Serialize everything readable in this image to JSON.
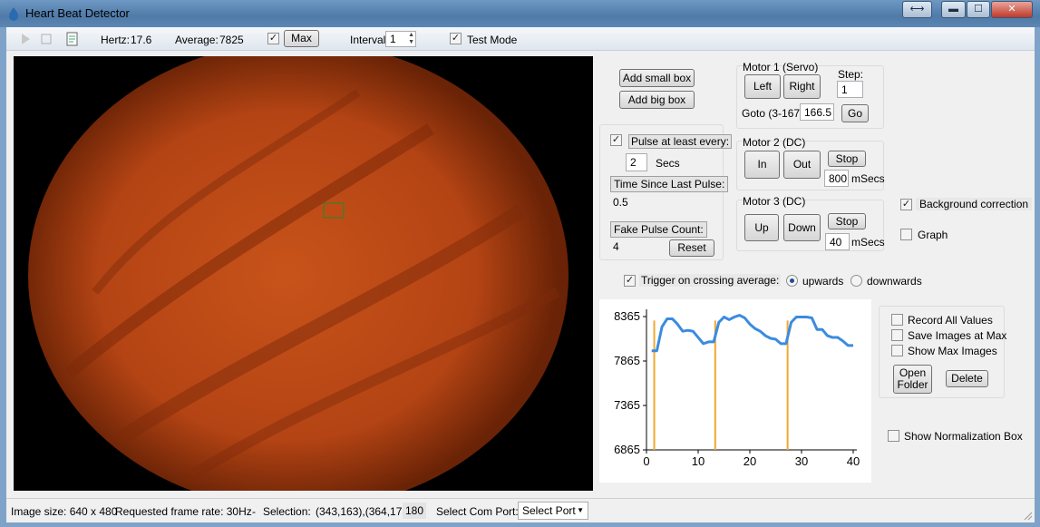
{
  "window": {
    "title": "Heart Beat Detector"
  },
  "toolbar": {
    "hertz_label": "Hertz:",
    "hertz_value": "17.6",
    "average_label": "Average:",
    "average_value": "7825",
    "max_checked": true,
    "max_label": "Max",
    "interval_label": "Interval:",
    "interval_value": "1",
    "test_mode_checked": true,
    "test_mode_label": "Test Mode"
  },
  "controls": {
    "add_small_box": "Add small box",
    "add_big_box": "Add big box",
    "pulse_checked": true,
    "pulse_label": "Pulse at least every:",
    "pulse_secs_value": "2",
    "secs_label": "Secs",
    "time_since_label": "Time Since Last Pulse:",
    "time_since_value": "0.5",
    "fake_pulse_label": "Fake Pulse Count:",
    "fake_pulse_value": "4",
    "reset_label": "Reset"
  },
  "motor1": {
    "title": "Motor 1  (Servo)",
    "left": "Left",
    "right": "Right",
    "step_label": "Step:",
    "step_value": "1",
    "goto_label": "Goto (3-167):",
    "goto_value": "166.5",
    "go": "Go"
  },
  "motor2": {
    "title": "Motor 2  (DC)",
    "in": "In",
    "out": "Out",
    "stop": "Stop",
    "msecs_value": "800",
    "msecs_label": "mSecs"
  },
  "motor3": {
    "title": "Motor 3 (DC)",
    "up": "Up",
    "down": "Down",
    "stop": "Stop",
    "msecs_value": "40",
    "msecs_label": "mSecs"
  },
  "options": {
    "background_correction_checked": true,
    "background_correction": "Background correction",
    "graph_checked": false,
    "graph": "Graph",
    "trigger_checked": true,
    "trigger_label": "Trigger on crossing average:",
    "upwards": "upwards",
    "downwards": "downwards",
    "direction_selected": "upwards",
    "record_all": "Record All Values",
    "save_images": "Save Images at Max",
    "show_max": "Show Max Images",
    "open_folder_line1": "Open",
    "open_folder_line2": "Folder",
    "delete": "Delete",
    "show_norm_box": "Show Normalization Box"
  },
  "status": {
    "image_size": "Image size: 640 x 480",
    "frame_rate": "Requested frame rate: 30Hz",
    "separator": "-",
    "selection_label": "Selection:",
    "selection_value": "(343,163),(364,178)",
    "selection_count": "180",
    "com_label": "Select Com Port:",
    "com_value": "Select Port"
  },
  "chart_data": {
    "type": "line",
    "title": "",
    "xlabel": "",
    "ylabel": "",
    "xlim": [
      0,
      40
    ],
    "ylim": [
      6865,
      8365
    ],
    "x_ticks": [
      0,
      10,
      20,
      30,
      40
    ],
    "y_ticks": [
      6865,
      7365,
      7865,
      8365
    ],
    "series": [
      {
        "x": [
          1,
          2,
          3,
          4,
          5,
          6,
          7,
          8,
          9,
          10,
          11,
          12,
          13,
          14,
          15,
          16,
          17,
          18,
          19,
          20,
          21,
          22,
          23,
          24,
          25,
          26,
          27,
          28,
          29,
          30,
          31,
          32,
          33,
          34,
          35,
          36,
          37,
          38,
          39,
          40
        ],
        "y": [
          7980,
          7980,
          8250,
          8340,
          8340,
          8280,
          8200,
          8210,
          8200,
          8130,
          8060,
          8080,
          8080,
          8300,
          8360,
          8330,
          8360,
          8380,
          8350,
          8280,
          8230,
          8200,
          8150,
          8120,
          8110,
          8060,
          8060,
          8300,
          8360,
          8360,
          8360,
          8350,
          8220,
          8220,
          8150,
          8130,
          8130,
          8090,
          8040,
          8040
        ],
        "color": "#3b8be0"
      }
    ],
    "markers": [
      {
        "x": 1.5,
        "color": "#f0a830"
      },
      {
        "x": 13.3,
        "color": "#f0a830"
      },
      {
        "x": 27.3,
        "color": "#f0a830"
      }
    ]
  }
}
